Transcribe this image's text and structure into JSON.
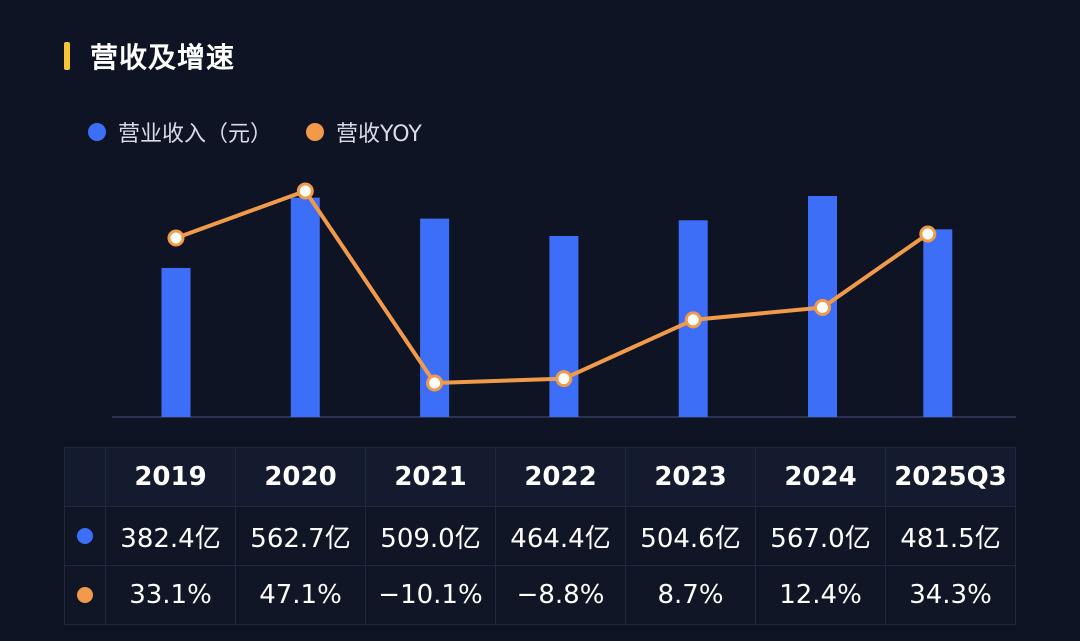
{
  "title": "营收及增速",
  "colors": {
    "accent": "#f5c23b",
    "bar": "#3d6ef7",
    "line": "#f09a4a",
    "background": "#0f1424"
  },
  "chart_data": {
    "type": "bar",
    "categories": [
      "2019",
      "2020",
      "2021",
      "2022",
      "2023",
      "2024",
      "2025Q3"
    ],
    "series": [
      {
        "name": "营业收入（元）",
        "type": "bar",
        "values": [
          382.4,
          562.7,
          509.0,
          464.4,
          504.6,
          567.0,
          481.5
        ],
        "labels": [
          "382.4亿",
          "562.7亿",
          "509.0亿",
          "464.4亿",
          "504.6亿",
          "567.0亿",
          "481.5亿"
        ]
      },
      {
        "name": "营收YOY",
        "type": "line",
        "values": [
          33.1,
          47.1,
          -10.1,
          -8.8,
          8.7,
          12.4,
          34.3
        ],
        "labels": [
          "33.1%",
          "47.1%",
          "−10.1%",
          "−8.8%",
          "8.7%",
          "12.4%",
          "34.3%"
        ]
      }
    ],
    "legend_position": "top-left",
    "grid": false
  }
}
